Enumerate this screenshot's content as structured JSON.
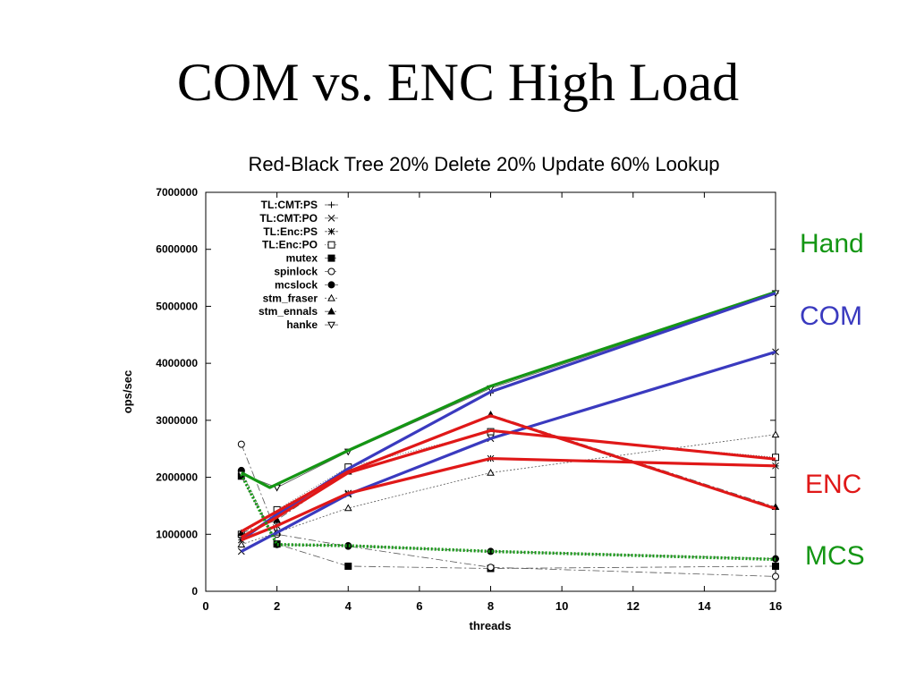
{
  "slide": {
    "title": "COM vs. ENC High Load",
    "side_labels": {
      "hand": {
        "text": "Hand",
        "color": "#149614"
      },
      "com": {
        "text": "COM",
        "color": "#3a3abf"
      },
      "enc": {
        "text": "ENC",
        "color": "#e01818"
      },
      "mcs": {
        "text": "MCS",
        "color": "#149614"
      }
    }
  },
  "chart_data": {
    "type": "line",
    "title": "Red-Black Tree 20% Delete 20% Update 60% Lookup",
    "xlabel": "threads",
    "ylabel": "ops/sec",
    "xlim": [
      0,
      16
    ],
    "ylim": [
      0,
      7000000
    ],
    "xticks": [
      0,
      2,
      4,
      6,
      8,
      10,
      12,
      14,
      16
    ],
    "yticks": [
      0,
      1000000,
      2000000,
      3000000,
      4000000,
      5000000,
      6000000,
      7000000
    ],
    "ytick_labels": [
      "0",
      "1000000",
      "2000000",
      "3000000",
      "4000000",
      "5000000",
      "6000000",
      "7000000"
    ],
    "legend_position": "top-left",
    "series": [
      {
        "name": "TL:CMT:PS",
        "marker": "plus",
        "dash": "",
        "x": [
          1,
          2,
          4,
          8,
          16
        ],
        "y": [
          950000,
          1350000,
          2150000,
          3480000,
          5230000
        ]
      },
      {
        "name": "TL:CMT:PO",
        "marker": "x",
        "dash": "6,3",
        "x": [
          1,
          2,
          4,
          8,
          16
        ],
        "y": [
          700000,
          1030000,
          1700000,
          2680000,
          4200000
        ]
      },
      {
        "name": "TL:Enc:PS",
        "marker": "star",
        "dash": "3,3",
        "x": [
          1,
          2,
          4,
          8,
          16
        ],
        "y": [
          900000,
          1150000,
          1720000,
          2330000,
          2200000
        ]
      },
      {
        "name": "TL:Enc:PO",
        "marker": "square-open",
        "dash": "1,2",
        "x": [
          1,
          2,
          4,
          8,
          16
        ],
        "y": [
          1000000,
          1430000,
          2180000,
          2800000,
          2350000
        ]
      },
      {
        "name": "mutex",
        "marker": "square",
        "dash": "8,3,2,3",
        "x": [
          1,
          2,
          4,
          8,
          16
        ],
        "y": [
          2020000,
          830000,
          440000,
          400000,
          440000
        ]
      },
      {
        "name": "spinlock",
        "marker": "circle-open",
        "dash": "8,3,2,3",
        "x": [
          1,
          2,
          4,
          8,
          16
        ],
        "y": [
          2580000,
          1000000,
          790000,
          420000,
          260000
        ]
      },
      {
        "name": "mcslock",
        "marker": "circle",
        "dash": "3,3",
        "x": [
          1,
          2,
          4,
          8,
          16
        ],
        "y": [
          2120000,
          820000,
          800000,
          700000,
          570000
        ]
      },
      {
        "name": "stm_fraser",
        "marker": "triangle-open",
        "dash": "2,2",
        "x": [
          1,
          2,
          4,
          8,
          16
        ],
        "y": [
          820000,
          1030000,
          1460000,
          2080000,
          2750000
        ]
      },
      {
        "name": "stm_ennals",
        "marker": "triangle",
        "dash": "8,3,2,3",
        "x": [
          1,
          2,
          4,
          8,
          16
        ],
        "y": [
          1020000,
          1250000,
          2100000,
          3100000,
          1480000
        ]
      },
      {
        "name": "hanke",
        "marker": "triangle-down-open",
        "dash": "",
        "x": [
          1,
          2,
          4,
          8,
          16
        ],
        "y": [
          2060000,
          1820000,
          2450000,
          3560000,
          5230000
        ]
      }
    ],
    "overlays": [
      {
        "group": "Hand",
        "color": "#149614",
        "width": 3.2,
        "dash": "",
        "x": [
          1,
          1.8,
          4,
          8,
          16
        ],
        "y": [
          2080000,
          1820000,
          2470000,
          3600000,
          5250000
        ]
      },
      {
        "group": "COM",
        "color": "#3a3abf",
        "width": 3.2,
        "dash": "",
        "x": [
          1,
          2,
          4,
          8,
          16
        ],
        "y": [
          900000,
          1350000,
          2150000,
          3500000,
          5230000
        ]
      },
      {
        "group": "COM",
        "color": "#3a3abf",
        "width": 3.2,
        "dash": "",
        "x": [
          1,
          2,
          4,
          8,
          16
        ],
        "y": [
          700000,
          1030000,
          1700000,
          2680000,
          4200000
        ]
      },
      {
        "group": "ENC",
        "color": "#e01818",
        "width": 3.2,
        "dash": "",
        "x": [
          1,
          2,
          4,
          8,
          16
        ],
        "y": [
          1050000,
          1400000,
          2100000,
          3080000,
          1450000
        ]
      },
      {
        "group": "ENC",
        "color": "#e01818",
        "width": 3.2,
        "dash": "",
        "x": [
          1,
          2,
          4,
          8,
          16
        ],
        "y": [
          950000,
          1300000,
          2080000,
          2820000,
          2320000
        ]
      },
      {
        "group": "ENC",
        "color": "#e01818",
        "width": 3.2,
        "dash": "",
        "x": [
          1,
          2,
          4,
          8,
          16
        ],
        "y": [
          900000,
          1150000,
          1720000,
          2330000,
          2200000
        ]
      },
      {
        "group": "MCS",
        "color": "#149614",
        "width": 3.5,
        "dash": "2,2",
        "x": [
          1,
          2,
          4,
          8,
          16
        ],
        "y": [
          2050000,
          820000,
          800000,
          700000,
          560000
        ]
      }
    ]
  }
}
